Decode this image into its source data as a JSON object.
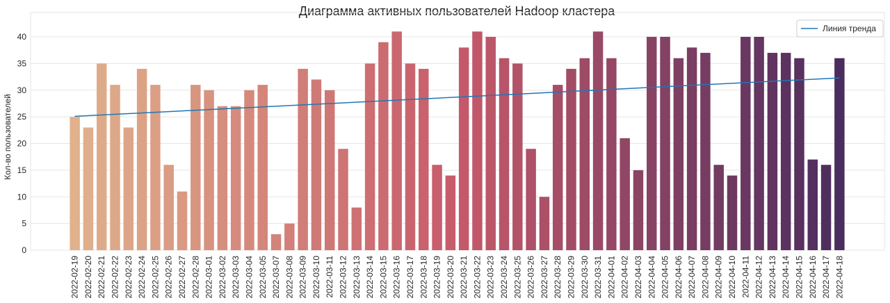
{
  "chart_data": {
    "type": "bar",
    "title": "Диаграмма активных пользователей Hadoop кластера",
    "xlabel": "",
    "ylabel": "Кол-во пользователей",
    "ylim": [
      0,
      43
    ],
    "yticks": [
      0,
      5,
      10,
      15,
      20,
      25,
      30,
      35,
      40
    ],
    "grid": true,
    "legend_position": "top-right",
    "categories": [
      "2022-02-19",
      "2022-02-20",
      "2022-02-21",
      "2022-02-22",
      "2022-02-23",
      "2022-02-24",
      "2022-02-25",
      "2022-02-26",
      "2022-02-27",
      "2022-02-28",
      "2022-03-01",
      "2022-03-02",
      "2022-03-03",
      "2022-03-04",
      "2022-03-05",
      "2022-03-07",
      "2022-03-08",
      "2022-03-09",
      "2022-03-10",
      "2022-03-11",
      "2022-03-12",
      "2022-03-13",
      "2022-03-14",
      "2022-03-15",
      "2022-03-16",
      "2022-03-17",
      "2022-03-18",
      "2022-03-19",
      "2022-03-20",
      "2022-03-21",
      "2022-03-22",
      "2022-03-23",
      "2022-03-24",
      "2022-03-25",
      "2022-03-26",
      "2022-03-27",
      "2022-03-28",
      "2022-03-29",
      "2022-03-30",
      "2022-03-31",
      "2022-04-01",
      "2022-04-02",
      "2022-04-03",
      "2022-04-04",
      "2022-04-05",
      "2022-04-06",
      "2022-04-07",
      "2022-04-08",
      "2022-04-09",
      "2022-04-10",
      "2022-04-11",
      "2022-04-12",
      "2022-04-13",
      "2022-04-14",
      "2022-04-15",
      "2022-04-16",
      "2022-04-17",
      "2022-04-18"
    ],
    "values": [
      25,
      23,
      35,
      31,
      23,
      34,
      31,
      16,
      11,
      31,
      30,
      27,
      27,
      30,
      31,
      3,
      5,
      34,
      32,
      30,
      19,
      8,
      35,
      39,
      41,
      35,
      34,
      16,
      14,
      38,
      41,
      40,
      36,
      35,
      19,
      10,
      31,
      34,
      36,
      41,
      36,
      21,
      15,
      40,
      40,
      36,
      38,
      37,
      16,
      14,
      40,
      40,
      37,
      37,
      36,
      17,
      16,
      36
    ],
    "series": [
      {
        "name": "Линия тренда",
        "type": "line",
        "start": 25.1,
        "end": 32.3,
        "color": "#1f77b4"
      }
    ],
    "palette": "flare",
    "colors": {
      "bar_start": "#e0b18c",
      "bar_mid": "#c75a6a",
      "bar_end": "#4b2c5e",
      "trend": "#1f77b4",
      "grid": "#e5e5e5"
    }
  }
}
